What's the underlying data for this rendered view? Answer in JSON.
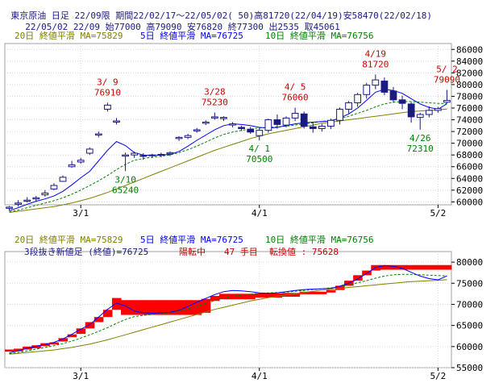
{
  "header": {
    "line1": "東京原油 日足 22/09限 期間22/02/17～22/05/02( 50)高81720(22/04/19)安58470(22/02/18)",
    "line2": "22/05/02 22/09 始77000 高79090 安76820 終77300 出2535 取45061"
  },
  "colors": {
    "background": "#ffffff",
    "grid": "#d8d8d8",
    "up_candle": "#ffffff",
    "down_candle": "#1a1a80",
    "ma20": "#808000",
    "ma5": "#0000ff",
    "ma10": "#008000",
    "annotation_high": "#cc0000",
    "annotation_low": "#008000",
    "brick": "#ff0000"
  },
  "chart_data": [
    {
      "type": "candlestick",
      "legend": [
        {
          "text": "20日 終値平滑 MA=75829",
          "color": "#808000"
        },
        {
          "text": "5日 終値平滑 MA=76725",
          "color": "#0000ff"
        },
        {
          "text": "10日 終値平滑 MA=76756",
          "color": "#008000"
        }
      ],
      "y_ticks": [
        60000,
        62000,
        64000,
        66000,
        68000,
        70000,
        72000,
        74000,
        76000,
        78000,
        80000,
        82000,
        84000,
        86000
      ],
      "ylim": [
        59500,
        87000
      ],
      "x_labels": [
        {
          "index": 8,
          "label": "3/1"
        },
        {
          "index": 28,
          "label": "4/1"
        },
        {
          "index": 48,
          "label": "5/2"
        }
      ],
      "candles": [
        {
          "o": 58900,
          "h": 59300,
          "l": 58470,
          "c": 59100
        },
        {
          "o": 59600,
          "h": 60300,
          "l": 59200,
          "c": 59800
        },
        {
          "o": 60100,
          "h": 60800,
          "l": 59900,
          "c": 60300
        },
        {
          "o": 60500,
          "h": 61000,
          "l": 60100,
          "c": 60700
        },
        {
          "o": 61200,
          "h": 62000,
          "l": 60900,
          "c": 61500
        },
        {
          "o": 62200,
          "h": 63200,
          "l": 62000,
          "c": 62800
        },
        {
          "o": 63500,
          "h": 64500,
          "l": 63400,
          "c": 64200
        },
        {
          "o": 66000,
          "h": 67000,
          "l": 65800,
          "c": 66300
        },
        {
          "o": 66800,
          "h": 67500,
          "l": 66500,
          "c": 67100
        },
        {
          "o": 68300,
          "h": 69300,
          "l": 68000,
          "c": 69000
        },
        {
          "o": 71400,
          "h": 72000,
          "l": 71000,
          "c": 71600
        },
        {
          "o": 75800,
          "h": 76910,
          "l": 75400,
          "c": 76500
        },
        {
          "o": 73600,
          "h": 74300,
          "l": 73200,
          "c": 73800
        },
        {
          "o": 67800,
          "h": 68400,
          "l": 65240,
          "c": 68000
        },
        {
          "o": 68000,
          "h": 68600,
          "l": 67500,
          "c": 68300
        },
        {
          "o": 67800,
          "h": 68300,
          "l": 67200,
          "c": 67900
        },
        {
          "o": 67900,
          "h": 68200,
          "l": 67500,
          "c": 68000
        },
        {
          "o": 68000,
          "h": 68400,
          "l": 67600,
          "c": 68100
        },
        {
          "o": 68200,
          "h": 68600,
          "l": 67800,
          "c": 68400
        },
        {
          "o": 70800,
          "h": 71200,
          "l": 70400,
          "c": 71000
        },
        {
          "o": 71000,
          "h": 71600,
          "l": 70700,
          "c": 71300
        },
        {
          "o": 72100,
          "h": 72600,
          "l": 71800,
          "c": 72300
        },
        {
          "o": 73400,
          "h": 73900,
          "l": 73100,
          "c": 73600
        },
        {
          "o": 74300,
          "h": 75230,
          "l": 74000,
          "c": 74500
        },
        {
          "o": 74200,
          "h": 74600,
          "l": 73800,
          "c": 74400
        },
        {
          "o": 73100,
          "h": 73600,
          "l": 72700,
          "c": 73300
        },
        {
          "o": 72700,
          "h": 73000,
          "l": 72100,
          "c": 72500
        },
        {
          "o": 72400,
          "h": 72800,
          "l": 71600,
          "c": 71900
        },
        {
          "o": 71300,
          "h": 72600,
          "l": 70500,
          "c": 72200
        },
        {
          "o": 72200,
          "h": 74200,
          "l": 71800,
          "c": 74000
        },
        {
          "o": 74000,
          "h": 74900,
          "l": 72500,
          "c": 73200
        },
        {
          "o": 73100,
          "h": 74600,
          "l": 72700,
          "c": 74300
        },
        {
          "o": 74300,
          "h": 76060,
          "l": 73800,
          "c": 75100
        },
        {
          "o": 75000,
          "h": 75400,
          "l": 72500,
          "c": 72900
        },
        {
          "o": 72800,
          "h": 73400,
          "l": 71800,
          "c": 72500
        },
        {
          "o": 72500,
          "h": 73300,
          "l": 72000,
          "c": 72900
        },
        {
          "o": 72900,
          "h": 74200,
          "l": 72400,
          "c": 73900
        },
        {
          "o": 73900,
          "h": 76100,
          "l": 73200,
          "c": 75800
        },
        {
          "o": 75800,
          "h": 77200,
          "l": 75100,
          "c": 76900
        },
        {
          "o": 76900,
          "h": 78600,
          "l": 76200,
          "c": 78300
        },
        {
          "o": 78300,
          "h": 80300,
          "l": 77600,
          "c": 79900
        },
        {
          "o": 79900,
          "h": 81720,
          "l": 79200,
          "c": 80800
        },
        {
          "o": 80600,
          "h": 81200,
          "l": 78200,
          "c": 78700
        },
        {
          "o": 78900,
          "h": 79600,
          "l": 76900,
          "c": 77400
        },
        {
          "o": 77400,
          "h": 78100,
          "l": 75800,
          "c": 76800
        },
        {
          "o": 76700,
          "h": 77000,
          "l": 73500,
          "c": 74500
        },
        {
          "o": 74400,
          "h": 75200,
          "l": 72310,
          "c": 74900
        },
        {
          "o": 74900,
          "h": 76300,
          "l": 74400,
          "c": 75600
        },
        {
          "o": 75600,
          "h": 76200,
          "l": 75200,
          "c": 75900
        },
        {
          "o": 77000,
          "h": 79090,
          "l": 76820,
          "c": 77300
        }
      ],
      "ma5": [
        58500,
        59000,
        59600,
        60100,
        60500,
        61000,
        61800,
        62900,
        64100,
        65200,
        67000,
        68800,
        70300,
        69600,
        68400,
        68000,
        67900,
        68000,
        68100,
        68600,
        69500,
        70500,
        71400,
        72300,
        73000,
        73300,
        73200,
        73000,
        72700,
        72600,
        72700,
        73000,
        73300,
        73500,
        73600,
        73700,
        73800,
        74300,
        75000,
        76000,
        77300,
        78700,
        79200,
        79000,
        78500,
        77600,
        76700,
        76100,
        75800,
        76725
      ],
      "ma10": [
        58300,
        58600,
        59000,
        59400,
        59800,
        60200,
        60700,
        61300,
        62000,
        62800,
        63600,
        64500,
        65500,
        66400,
        67100,
        67400,
        67600,
        67800,
        68000,
        68400,
        68900,
        69500,
        70200,
        70900,
        71500,
        71900,
        72200,
        72400,
        72600,
        72700,
        72800,
        72900,
        73100,
        73300,
        73500,
        73700,
        73900,
        74200,
        74600,
        75100,
        75600,
        76200,
        76700,
        77000,
        77100,
        77100,
        77000,
        76900,
        76800,
        76756
      ],
      "ma20": [
        58200,
        58400,
        58600,
        58800,
        59000,
        59200,
        59500,
        59800,
        60200,
        60600,
        61100,
        61600,
        62200,
        62800,
        63400,
        64000,
        64600,
        65200,
        65800,
        66400,
        67000,
        67600,
        68200,
        68800,
        69300,
        69800,
        70300,
        70800,
        71200,
        71600,
        71900,
        72200,
        72500,
        72800,
        73100,
        73400,
        73600,
        73800,
        74000,
        74200,
        74400,
        74600,
        74800,
        75000,
        75200,
        75400,
        75500,
        75600,
        75700,
        75829
      ],
      "annotations": [
        {
          "index": 11,
          "date": "3/ 9",
          "value": "76910",
          "kind": "high"
        },
        {
          "index": 13,
          "date": "3/10",
          "value": "65240",
          "kind": "low"
        },
        {
          "index": 23,
          "date": "3/28",
          "value": "75230",
          "kind": "high"
        },
        {
          "index": 28,
          "date": "4/ 1",
          "value": "70500",
          "kind": "low"
        },
        {
          "index": 32,
          "date": "4/ 5",
          "value": "76060",
          "kind": "high"
        },
        {
          "index": 41,
          "date": "4/19",
          "value": "81720",
          "kind": "high"
        },
        {
          "index": 46,
          "date": "4/26",
          "value": "72310",
          "kind": "low"
        },
        {
          "index": 49,
          "date": "5/ 2",
          "value": "79090",
          "kind": "high"
        }
      ]
    },
    {
      "type": "three-line-break",
      "legend": [
        {
          "text": "20日 終値平滑 MA=75829",
          "color": "#808000"
        },
        {
          "text": "5日 終値平滑 MA=76725",
          "color": "#0000ff"
        },
        {
          "text": "10日 終値平滑 MA=76756",
          "color": "#008000"
        }
      ],
      "info": {
        "label": "3段抜き新値足 (終値)=76725",
        "state": "陽転中",
        "count_text": "47 手目",
        "reversal_text": "転換値 : 75628"
      },
      "y_ticks": [
        55000,
        60000,
        65000,
        70000,
        75000,
        80000
      ],
      "ylim": [
        55000,
        82500
      ],
      "x_labels": [
        {
          "index": 8,
          "label": "3/1"
        },
        {
          "index": 28,
          "label": "4/1"
        },
        {
          "index": 48,
          "label": "5/2"
        }
      ],
      "bricks": [
        [
          58800,
          59300
        ],
        [
          58900,
          59500
        ],
        [
          59300,
          60000
        ],
        [
          59600,
          60300
        ],
        [
          60100,
          60800
        ],
        [
          60500,
          61000
        ],
        [
          61200,
          62000
        ],
        [
          62200,
          62900
        ],
        [
          63000,
          64300
        ],
        [
          64300,
          65800
        ],
        [
          65800,
          67000
        ],
        [
          67000,
          68700
        ],
        [
          68700,
          71500
        ],
        [
          67500,
          71000
        ],
        [
          67500,
          71000
        ],
        [
          67500,
          71000
        ],
        [
          67500,
          71000
        ],
        [
          67500,
          71000
        ],
        [
          67500,
          71000
        ],
        [
          67500,
          71000
        ],
        [
          67500,
          71000
        ],
        [
          67500,
          71000
        ],
        [
          68000,
          71300
        ],
        [
          70800,
          72000
        ],
        [
          71200,
          72500
        ],
        [
          71200,
          72500
        ],
        [
          71200,
          72500
        ],
        [
          71200,
          72500
        ],
        [
          71600,
          72600
        ],
        [
          71600,
          72600
        ],
        [
          71600,
          72600
        ],
        [
          71800,
          72700
        ],
        [
          71800,
          72700
        ],
        [
          72400,
          73000
        ],
        [
          72400,
          73000
        ],
        [
          72400,
          73000
        ],
        [
          72800,
          73400
        ],
        [
          73400,
          74400
        ],
        [
          74400,
          75600
        ],
        [
          75600,
          76900
        ],
        [
          76900,
          78000
        ],
        [
          78000,
          79300
        ],
        [
          78200,
          79300
        ],
        [
          78200,
          79300
        ],
        [
          78200,
          79300
        ],
        [
          78200,
          79300
        ],
        [
          78200,
          79300
        ],
        [
          78200,
          79300
        ],
        [
          78200,
          79300
        ],
        [
          78200,
          79300
        ]
      ],
      "ma5": [
        58500,
        59000,
        59600,
        60100,
        60500,
        61000,
        61800,
        62900,
        64100,
        65200,
        67000,
        68800,
        70300,
        69600,
        68400,
        68000,
        67900,
        68000,
        68100,
        68600,
        69500,
        70500,
        71400,
        72300,
        73000,
        73300,
        73200,
        73000,
        72700,
        72600,
        72700,
        73000,
        73300,
        73500,
        73600,
        73700,
        73800,
        74300,
        75000,
        76000,
        77300,
        78700,
        79200,
        79000,
        78500,
        77600,
        76700,
        76100,
        75800,
        76725
      ],
      "ma10": [
        58300,
        58600,
        59000,
        59400,
        59800,
        60200,
        60700,
        61300,
        62000,
        62800,
        63600,
        64500,
        65500,
        66400,
        67100,
        67400,
        67600,
        67800,
        68000,
        68400,
        68900,
        69500,
        70200,
        70900,
        71500,
        71900,
        72200,
        72400,
        72600,
        72700,
        72800,
        72900,
        73100,
        73300,
        73500,
        73700,
        73900,
        74200,
        74600,
        75100,
        75600,
        76200,
        76700,
        77000,
        77100,
        77100,
        77000,
        76900,
        76800,
        76756
      ],
      "ma20": [
        58200,
        58400,
        58600,
        58800,
        59000,
        59200,
        59500,
        59800,
        60200,
        60600,
        61100,
        61600,
        62200,
        62800,
        63400,
        64000,
        64600,
        65200,
        65800,
        66400,
        67000,
        67600,
        68200,
        68800,
        69300,
        69800,
        70300,
        70800,
        71200,
        71600,
        71900,
        72200,
        72500,
        72800,
        73100,
        73400,
        73600,
        73800,
        74000,
        74200,
        74400,
        74600,
        74800,
        75000,
        75200,
        75400,
        75500,
        75600,
        75700,
        75829
      ]
    }
  ]
}
